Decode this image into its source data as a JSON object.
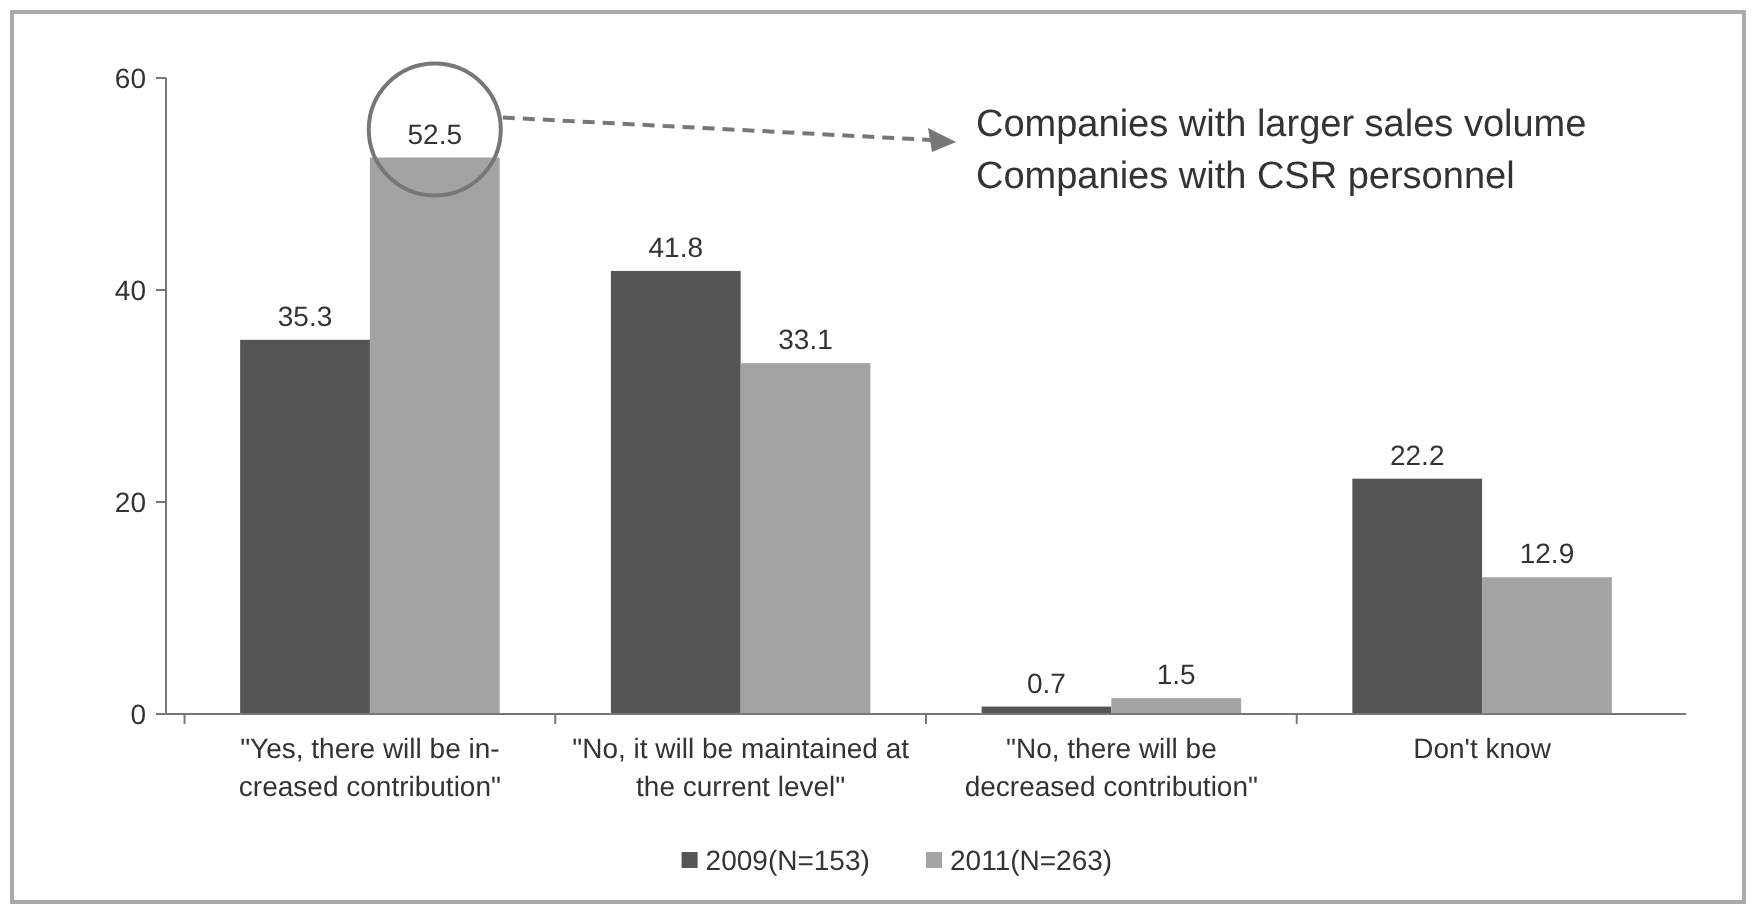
{
  "chart_data": {
    "type": "bar",
    "categories": [
      "\"Yes, there will be in-\ncreased contribution\"",
      "\"No, it will be maintained at\nthe current level\"",
      "\"No, there will be\ndecreased contribution\"",
      "Don't know"
    ],
    "series": [
      {
        "name": "2009(N=153)",
        "color": "#555555",
        "values": [
          35.3,
          41.8,
          0.7,
          22.2
        ]
      },
      {
        "name": "2011(N=263)",
        "color": "#a3a3a3",
        "values": [
          52.5,
          33.1,
          1.5,
          12.9
        ]
      }
    ],
    "ylim": [
      0,
      60
    ],
    "yticks": [
      0,
      20,
      40,
      60
    ],
    "data_labels": true,
    "legend": "bottom",
    "grid": false,
    "annotations": [
      "Companies with larger sales volume\nCompanies with CSR personnel"
    ]
  }
}
